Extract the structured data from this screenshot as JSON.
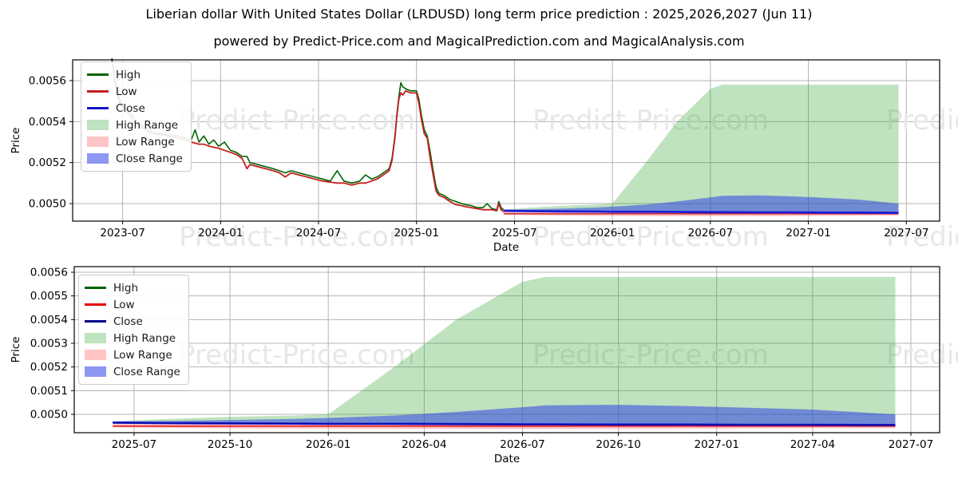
{
  "header": {
    "title": "Liberian dollar With United States Dollar (LRDUSD) long term price prediction : 2025,2026,2027 (Jun 11)",
    "subtitle": "powered by Predict-Price.com and MagicalPrediction.com and MagicalAnalysis.com"
  },
  "watermark": {
    "text": "Predict-Price.com",
    "color": "#e7e7e7"
  },
  "colors": {
    "high_line": "#006400",
    "high_range_fill": "rgba(44,160,44,0.30)",
    "low_range_fill": "rgba(255,70,70,0.32)",
    "close_range_fill": "rgba(50,65,230,0.55)",
    "close_bright": "#2424dd",
    "grid": "#b4b4b4",
    "spine": "#000000",
    "text": "#000000"
  },
  "chart_data": [
    {
      "type": "line",
      "role": "history-plus-forecast",
      "xlabel": "Date",
      "ylabel": "Price",
      "x_tick_labels": [
        "2023-07",
        "2024-01",
        "2024-07",
        "2025-01",
        "2025-07",
        "2026-01",
        "2026-07",
        "2027-01",
        "2027-07"
      ],
      "x_tick_values": [
        2023.5,
        2024.0,
        2024.5,
        2025.0,
        2025.5,
        2026.0,
        2026.5,
        2027.0,
        2027.5
      ],
      "y_tick_labels": [
        "0.0050",
        "0.0052",
        "0.0054",
        "0.0056"
      ],
      "y_tick_values": [
        0.005,
        0.0052,
        0.0054,
        0.0056
      ],
      "xlim": [
        2023.245,
        2027.67
      ],
      "ylim": [
        0.0049143,
        0.0057013
      ],
      "grid": true,
      "legend_position": "upper-left",
      "line_colors": {
        "low": "#c41e1e",
        "close": "#1414cc"
      },
      "legend_items": [
        {
          "label": "High",
          "type": "line",
          "color": "#006400"
        },
        {
          "label": "Low",
          "type": "line",
          "color": "#c41e1e"
        },
        {
          "label": "Close",
          "type": "line",
          "color": "#1414cc"
        },
        {
          "label": "High Range",
          "type": "patch",
          "color": "rgba(44,160,44,0.30)"
        },
        {
          "label": "Low Range",
          "type": "patch",
          "color": "rgba(255,70,70,0.32)"
        },
        {
          "label": "Close Range",
          "type": "patch",
          "color": "rgba(50,65,230,0.55)"
        }
      ],
      "historical": {
        "t": [
          2023.445,
          2023.455,
          2023.465,
          2023.475,
          2023.49,
          2023.51,
          2023.53,
          2023.55,
          2023.57,
          2023.6,
          2023.63,
          2023.66,
          2023.7,
          2023.74,
          2023.78,
          2023.82,
          2023.85,
          2023.87,
          2023.89,
          2023.915,
          2023.94,
          2023.965,
          2023.99,
          2024.02,
          2024.05,
          2024.08,
          2024.11,
          2024.135,
          2024.15,
          2024.19,
          2024.23,
          2024.27,
          2024.3,
          2024.33,
          2024.36,
          2024.4,
          2024.44,
          2024.48,
          2024.52,
          2024.56,
          2024.595,
          2024.63,
          2024.67,
          2024.71,
          2024.74,
          2024.77,
          2024.8,
          2024.83,
          2024.86,
          2024.875,
          2024.89,
          2024.9,
          2024.91,
          2024.92,
          2024.93,
          2024.945,
          2024.97,
          2025.0,
          2025.012,
          2025.025,
          2025.04,
          2025.055,
          2025.07,
          2025.085,
          2025.1,
          2025.115,
          2025.14,
          2025.17,
          2025.2,
          2025.23,
          2025.25,
          2025.28,
          2025.31,
          2025.34,
          2025.36,
          2025.385,
          2025.41,
          2025.42,
          2025.432,
          2025.445
        ],
        "low": [
          0.0057,
          0.00563,
          0.00557,
          0.00552,
          0.00548,
          0.00546,
          0.00544,
          0.00541,
          0.00539,
          0.00537,
          0.00535,
          0.00534,
          0.005335,
          0.00533,
          0.00532,
          0.00531,
          0.0053,
          0.005295,
          0.00529,
          0.00529,
          0.00528,
          0.005275,
          0.00527,
          0.00526,
          0.00525,
          0.00524,
          0.00522,
          0.00517,
          0.00519,
          0.00518,
          0.00517,
          0.00516,
          0.00515,
          0.00513,
          0.00515,
          0.00514,
          0.00513,
          0.00512,
          0.00511,
          0.005105,
          0.0051,
          0.0051,
          0.00509,
          0.0051,
          0.0051,
          0.00511,
          0.00512,
          0.00514,
          0.00516,
          0.00521,
          0.00532,
          0.00543,
          0.00551,
          0.00554,
          0.00553,
          0.00555,
          0.00554,
          0.00554,
          0.00549,
          0.00541,
          0.00534,
          0.00532,
          0.00522,
          0.00514,
          0.00506,
          0.00504,
          0.00503,
          0.00501,
          0.004995,
          0.00499,
          0.004985,
          0.00498,
          0.004975,
          0.00497,
          0.00497,
          0.00497,
          0.004965,
          0.005,
          0.00497,
          0.00496
        ],
        "high": [
          0.00571,
          0.00565,
          0.00559,
          0.00554,
          0.0055,
          0.00547,
          0.00545,
          0.00543,
          0.0054,
          0.00538,
          0.00536,
          0.00535,
          0.00534,
          0.005335,
          0.00533,
          0.00532,
          0.00531,
          0.00536,
          0.0053,
          0.00533,
          0.00529,
          0.00531,
          0.00528,
          0.0053,
          0.00526,
          0.00525,
          0.00523,
          0.00523,
          0.0052,
          0.00519,
          0.00518,
          0.00517,
          0.00516,
          0.00515,
          0.00516,
          0.00515,
          0.00514,
          0.00513,
          0.00512,
          0.00511,
          0.00516,
          0.00511,
          0.0051,
          0.00511,
          0.00514,
          0.00512,
          0.00513,
          0.00515,
          0.00517,
          0.00522,
          0.00533,
          0.00544,
          0.00552,
          0.00559,
          0.00557,
          0.00556,
          0.00555,
          0.00555,
          0.00551,
          0.00543,
          0.00536,
          0.00533,
          0.00525,
          0.00516,
          0.00508,
          0.00505,
          0.00504,
          0.00502,
          0.00501,
          0.005,
          0.004995,
          0.00499,
          0.00498,
          0.00498,
          0.005,
          0.004975,
          0.00497,
          0.00501,
          0.00498,
          0.00497
        ]
      },
      "forecast": {
        "t": [
          2025.445,
          2025.58,
          2025.75,
          2025.92,
          2026.0,
          2026.17,
          2026.33,
          2026.5,
          2026.56,
          2026.75,
          2026.92,
          2027.08,
          2027.25,
          2027.46
        ],
        "high_range_top": [
          0.00497,
          0.00498,
          0.00499,
          0.004995,
          0.005,
          0.0052,
          0.0054,
          0.00556,
          0.00558,
          0.00558,
          0.00558,
          0.00558,
          0.00558,
          0.00558
        ],
        "close_range_top": [
          0.00497,
          0.004972,
          0.004976,
          0.004981,
          0.004985,
          0.004995,
          0.00501,
          0.00503,
          0.005038,
          0.00504,
          0.005035,
          0.005028,
          0.00502,
          0.005
        ],
        "close": [
          0.004965,
          0.004963,
          0.004962,
          0.004961,
          0.00496,
          0.00496,
          0.004959,
          0.004958,
          0.004958,
          0.004957,
          0.004957,
          0.004956,
          0.004956,
          0.004955
        ],
        "low": [
          0.00495,
          0.00495,
          0.00495,
          0.00495,
          0.00495,
          0.00495,
          0.00495,
          0.00495,
          0.00495,
          0.00495,
          0.00495,
          0.00495,
          0.00495,
          0.00495
        ],
        "low_range_bottom": [
          0.004945,
          0.004943,
          0.004941,
          0.00494,
          0.00494,
          0.004939,
          0.004939,
          0.004938,
          0.004938,
          0.004938,
          0.004939,
          0.00494,
          0.004941,
          0.004942
        ]
      }
    },
    {
      "type": "line",
      "role": "forecast-zoom",
      "xlabel": "Date",
      "ylabel": "Price",
      "x_tick_labels": [
        "2025-07",
        "2025-10",
        "2026-01",
        "2026-04",
        "2026-07",
        "2026-10",
        "2027-01",
        "2027-04",
        "2027-07"
      ],
      "x_tick_values": [
        2025.5,
        2025.747,
        2026.0,
        2026.247,
        2026.5,
        2026.747,
        2027.0,
        2027.247,
        2027.5
      ],
      "y_tick_labels": [
        "0.0050",
        "0.0051",
        "0.0052",
        "0.0053",
        "0.0054",
        "0.0055",
        "0.0056"
      ],
      "y_tick_values": [
        0.005,
        0.0051,
        0.0052,
        0.0053,
        0.0054,
        0.0055,
        0.0056
      ],
      "xlim": [
        2025.346,
        2027.574
      ],
      "ylim": [
        0.0049225,
        0.0056236
      ],
      "grid": true,
      "legend_position": "upper-left",
      "line_colors": {
        "low": "#e60000",
        "close": "#00008b"
      },
      "legend_items": [
        {
          "label": "High",
          "type": "line",
          "color": "#006400"
        },
        {
          "label": "Low",
          "type": "line",
          "color": "#e60000"
        },
        {
          "label": "Close",
          "type": "line",
          "color": "#00008b"
        },
        {
          "label": "High Range",
          "type": "patch",
          "color": "rgba(44,160,44,0.30)"
        },
        {
          "label": "Low Range",
          "type": "patch",
          "color": "rgba(255,70,70,0.32)"
        },
        {
          "label": "Close Range",
          "type": "patch",
          "color": "rgba(50,65,230,0.55)"
        }
      ],
      "forecast": {
        "t": [
          2025.445,
          2025.58,
          2025.75,
          2025.92,
          2026.0,
          2026.17,
          2026.33,
          2026.5,
          2026.56,
          2026.75,
          2026.92,
          2027.08,
          2027.25,
          2027.46
        ],
        "high_range_top": [
          0.00497,
          0.00498,
          0.00499,
          0.004995,
          0.005,
          0.0052,
          0.0054,
          0.00556,
          0.00558,
          0.00558,
          0.00558,
          0.00558,
          0.00558,
          0.00558
        ],
        "close_range_top": [
          0.00497,
          0.004972,
          0.004976,
          0.004981,
          0.004985,
          0.004995,
          0.00501,
          0.00503,
          0.005038,
          0.00504,
          0.005035,
          0.005028,
          0.00502,
          0.005
        ],
        "close": [
          0.004965,
          0.004963,
          0.004962,
          0.004961,
          0.00496,
          0.00496,
          0.004959,
          0.004958,
          0.004958,
          0.004957,
          0.004957,
          0.004956,
          0.004956,
          0.004955
        ],
        "low": [
          0.00495,
          0.00495,
          0.00495,
          0.00495,
          0.00495,
          0.00495,
          0.00495,
          0.00495,
          0.00495,
          0.00495,
          0.00495,
          0.00495,
          0.00495,
          0.00495
        ],
        "low_range_bottom": [
          0.004945,
          0.004943,
          0.004941,
          0.00494,
          0.00494,
          0.004939,
          0.004939,
          0.004938,
          0.004938,
          0.004938,
          0.004939,
          0.00494,
          0.004941,
          0.004942
        ]
      }
    }
  ]
}
